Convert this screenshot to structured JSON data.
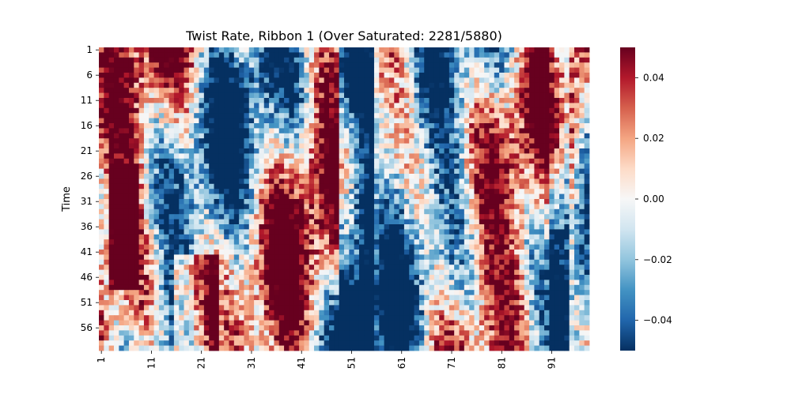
{
  "chart_data": {
    "type": "heatmap",
    "title": "Twist Rate, Ribbon 1 (Over Saturated: 2281/5880)",
    "xlabel": "",
    "ylabel": "Time",
    "x_tick_labels": [
      "1",
      "11",
      "21",
      "31",
      "41",
      "51",
      "61",
      "71",
      "81",
      "91"
    ],
    "y_tick_labels": [
      "1",
      "6",
      "11",
      "16",
      "21",
      "26",
      "31",
      "36",
      "41",
      "46",
      "51",
      "56"
    ],
    "n_columns": 98,
    "n_rows": 60,
    "colorbar": {
      "vmin": -0.05,
      "vmax": 0.05,
      "tick_values": [
        0.04,
        0.02,
        0.0,
        -0.02,
        -0.04
      ],
      "tick_labels": [
        "0.04",
        "0.02",
        "0.00",
        "−0.02",
        "−0.04"
      ],
      "colormap": "RdBu_r"
    },
    "colors": {
      "low": "#053061",
      "mid": "#f7f7f7",
      "high": "#67001f"
    }
  }
}
